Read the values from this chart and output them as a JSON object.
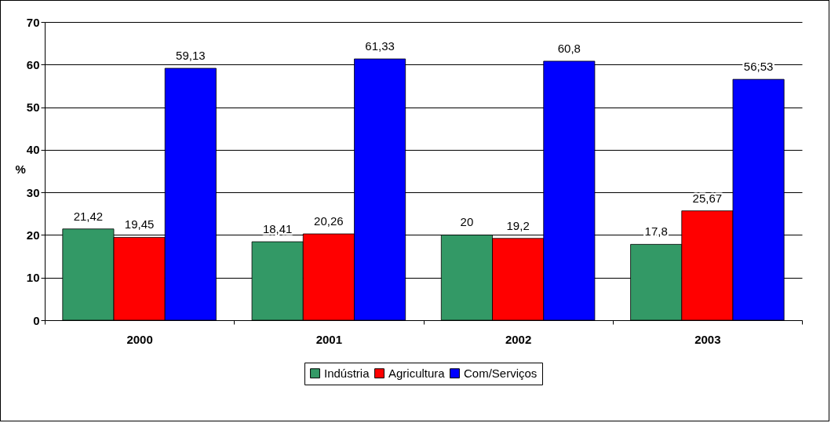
{
  "chart_data": {
    "type": "bar",
    "ylabel": "%",
    "categories": [
      "2000",
      "2001",
      "2002",
      "2003"
    ],
    "series": [
      {
        "name": "Indústria",
        "color": "#339966",
        "values": [
          21.42,
          18.41,
          20,
          17.8
        ],
        "value_labels": [
          "21,42",
          "18,41",
          "20",
          "17,8"
        ]
      },
      {
        "name": "Agricultura",
        "color": "#ff0000",
        "values": [
          19.45,
          20.26,
          19.2,
          25.67
        ],
        "value_labels": [
          "19,45",
          "20,26",
          "19,2",
          "25,67"
        ]
      },
      {
        "name": "Com/Serviços",
        "color": "#0000ff",
        "values": [
          59.13,
          61.33,
          60.8,
          56.53
        ],
        "value_labels": [
          "59,13",
          "61,33",
          "60,8",
          "56,53"
        ]
      }
    ],
    "ylim": [
      0,
      70
    ],
    "yticks": [
      0,
      10,
      20,
      30,
      40,
      50,
      60,
      70
    ],
    "grid": "y",
    "legend": "bottom"
  }
}
